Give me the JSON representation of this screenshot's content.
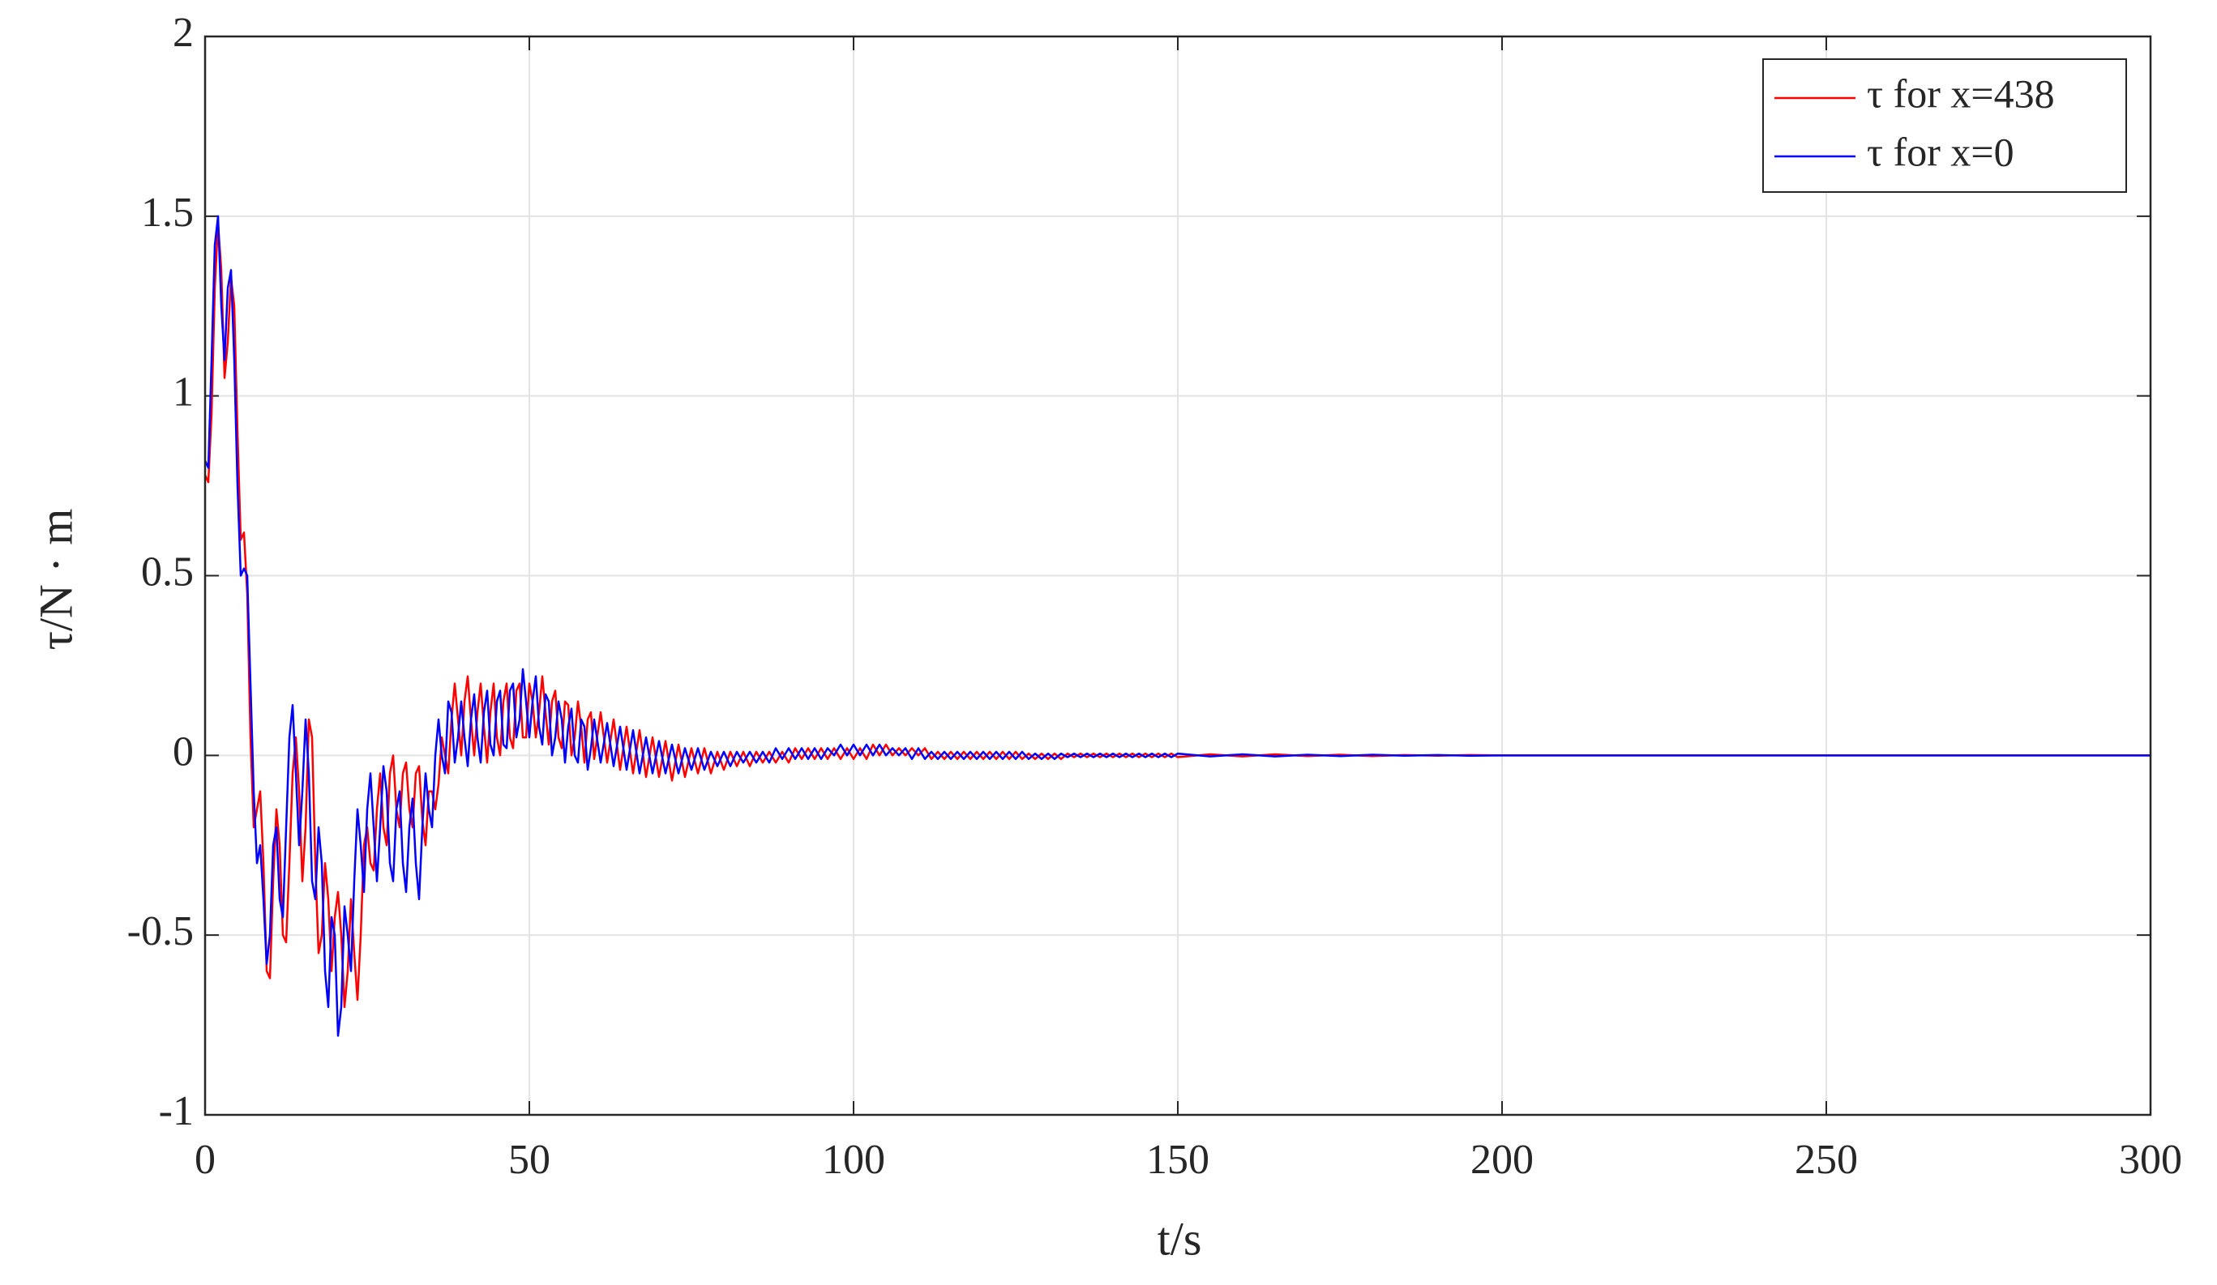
{
  "chart_data": {
    "type": "line",
    "xlabel": "t/s",
    "ylabel": "τ/N · m",
    "xlim": [
      0,
      300
    ],
    "xticks": [
      0,
      50,
      100,
      150,
      200,
      250,
      300
    ],
    "ylim": [
      -1,
      2
    ],
    "yticks": [
      -1,
      -0.5,
      0,
      0.5,
      1,
      1.5,
      2
    ],
    "grid": true,
    "legend": "upper right",
    "x": [
      0,
      0.5,
      1,
      1.5,
      2,
      2.5,
      3,
      3.5,
      4,
      4.5,
      5,
      5.5,
      6,
      6.5,
      7,
      7.5,
      8,
      8.5,
      9,
      9.5,
      10,
      10.5,
      11,
      11.5,
      12,
      12.5,
      13,
      13.5,
      14,
      14.5,
      15,
      15.5,
      16,
      16.5,
      17,
      17.5,
      18,
      18.5,
      19,
      19.5,
      20,
      20.5,
      21,
      21.5,
      22,
      22.5,
      23,
      23.5,
      24,
      24.5,
      25,
      25.5,
      26,
      26.5,
      27,
      27.5,
      28,
      28.5,
      29,
      29.5,
      30,
      30.5,
      31,
      31.5,
      32,
      32.5,
      33,
      33.5,
      34,
      34.5,
      35,
      35.5,
      36,
      36.5,
      37,
      37.5,
      38,
      38.5,
      39,
      39.5,
      40,
      40.5,
      41,
      41.5,
      42,
      42.5,
      43,
      43.5,
      44,
      44.5,
      45,
      45.5,
      46,
      46.5,
      47,
      47.5,
      48,
      48.5,
      49,
      49.5,
      50,
      50.5,
      51,
      51.5,
      52,
      52.5,
      53,
      53.5,
      54,
      54.5,
      55,
      55.5,
      56,
      56.5,
      57,
      57.5,
      58,
      58.5,
      59,
      59.5,
      60,
      61,
      62,
      63,
      64,
      65,
      66,
      67,
      68,
      69,
      70,
      71,
      72,
      73,
      74,
      75,
      76,
      77,
      78,
      79,
      80,
      81,
      82,
      83,
      84,
      85,
      86,
      87,
      88,
      89,
      90,
      91,
      92,
      93,
      94,
      95,
      96,
      97,
      98,
      99,
      100,
      101,
      102,
      103,
      104,
      105,
      106,
      107,
      108,
      109,
      110,
      111,
      112,
      113,
      114,
      115,
      116,
      117,
      118,
      119,
      120,
      121,
      122,
      123,
      124,
      125,
      126,
      127,
      128,
      129,
      130,
      131,
      132,
      133,
      134,
      135,
      136,
      137,
      138,
      139,
      140,
      141,
      142,
      143,
      144,
      145,
      146,
      147,
      148,
      149,
      150,
      155,
      160,
      165,
      170,
      175,
      180,
      185,
      190,
      195,
      200,
      205,
      210,
      215,
      220,
      225,
      230,
      235,
      240,
      245,
      250,
      255,
      260,
      265,
      270,
      275,
      280,
      285,
      290,
      295,
      300
    ],
    "series": [
      {
        "name": "τ for x=438",
        "color": "#ff0000",
        "values": [
          0.78,
          0.76,
          0.95,
          1.3,
          1.48,
          1.35,
          1.05,
          1.15,
          1.33,
          1.25,
          0.9,
          0.6,
          0.62,
          0.45,
          0.05,
          -0.2,
          -0.15,
          -0.1,
          -0.3,
          -0.6,
          -0.62,
          -0.35,
          -0.15,
          -0.25,
          -0.5,
          -0.52,
          -0.3,
          -0.05,
          0.05,
          -0.1,
          -0.35,
          -0.2,
          0.1,
          0.05,
          -0.3,
          -0.55,
          -0.5,
          -0.3,
          -0.4,
          -0.6,
          -0.45,
          -0.38,
          -0.5,
          -0.7,
          -0.6,
          -0.4,
          -0.55,
          -0.68,
          -0.5,
          -0.25,
          -0.2,
          -0.3,
          -0.32,
          -0.15,
          -0.05,
          -0.2,
          -0.25,
          -0.05,
          0,
          -0.15,
          -0.2,
          -0.05,
          -0.02,
          -0.15,
          -0.2,
          -0.05,
          -0.03,
          -0.18,
          -0.25,
          -0.1,
          -0.1,
          -0.15,
          -0.08,
          0.05,
          0,
          -0.05,
          0.1,
          0.2,
          0.1,
          0,
          0.15,
          0.22,
          0.1,
          0,
          0.12,
          0.2,
          0.08,
          -0.02,
          0.12,
          0.2,
          0.05,
          0,
          0.15,
          0.2,
          0.05,
          0.02,
          0.18,
          0.2,
          0.05,
          0.05,
          0.2,
          0.15,
          0.05,
          0.12,
          0.22,
          0.12,
          0.03,
          0.15,
          0.18,
          0.05,
          0.02,
          0.15,
          0.14,
          0,
          0.05,
          0.15,
          0.08,
          -0.02,
          0.1,
          0.12,
          -0.01,
          0.12,
          -0.02,
          0.1,
          -0.04,
          0.08,
          -0.05,
          0.07,
          -0.06,
          0.05,
          -0.06,
          0.04,
          -0.07,
          0.03,
          -0.06,
          0.02,
          -0.05,
          0.02,
          -0.05,
          0.01,
          -0.04,
          0.01,
          -0.03,
          0.01,
          -0.03,
          0.01,
          -0.02,
          0.01,
          -0.02,
          0.01,
          -0.02,
          0.02,
          -0.01,
          0.02,
          -0.01,
          0.02,
          -0.01,
          0.02,
          -0.01,
          0.02,
          -0.01,
          0.02,
          -0.01,
          0.03,
          0,
          0.03,
          0,
          0.02,
          0,
          0.02,
          0,
          0.02,
          -0.01,
          0.01,
          -0.01,
          0.01,
          -0.01,
          0.01,
          -0.01,
          0.01,
          -0.01,
          0.01,
          -0.01,
          0.01,
          -0.01,
          0.01,
          -0.01,
          0.005,
          -0.01,
          0.005,
          -0.01,
          0.005,
          -0.01,
          0.005,
          -0.005,
          0.005,
          -0.005,
          0.005,
          -0.005,
          0.005,
          -0.005,
          0.005,
          -0.005,
          0.005,
          -0.005,
          0.005,
          -0.005,
          0.005,
          -0.005,
          0.005,
          -0.005,
          0.003,
          -0.003,
          0.003,
          -0.002,
          0.002,
          -0.002,
          0.001,
          -0.001,
          0.001,
          0,
          0,
          0,
          0,
          0,
          0,
          0,
          0,
          0,
          0,
          0,
          0,
          0,
          0,
          0,
          0,
          0,
          0,
          0,
          0,
          0
        ]
      },
      {
        "name": "τ for x=0",
        "color": "#0000ff",
        "values": [
          0.82,
          0.8,
          1.1,
          1.42,
          1.5,
          1.25,
          1.1,
          1.3,
          1.35,
          1.1,
          0.75,
          0.5,
          0.52,
          0.5,
          0.2,
          -0.1,
          -0.3,
          -0.25,
          -0.4,
          -0.58,
          -0.5,
          -0.25,
          -0.2,
          -0.4,
          -0.45,
          -0.2,
          0.05,
          0.14,
          -0.05,
          -0.25,
          -0.1,
          0.1,
          -0.05,
          -0.35,
          -0.4,
          -0.2,
          -0.3,
          -0.6,
          -0.7,
          -0.45,
          -0.5,
          -0.78,
          -0.7,
          -0.42,
          -0.5,
          -0.6,
          -0.35,
          -0.15,
          -0.25,
          -0.38,
          -0.15,
          -0.05,
          -0.2,
          -0.35,
          -0.2,
          -0.03,
          -0.1,
          -0.3,
          -0.35,
          -0.15,
          -0.1,
          -0.3,
          -0.38,
          -0.2,
          -0.12,
          -0.3,
          -0.4,
          -0.2,
          -0.05,
          -0.15,
          -0.2,
          0,
          0.1,
          0,
          -0.05,
          0.15,
          0.12,
          -0.02,
          0.05,
          0.15,
          0.05,
          -0.03,
          0.1,
          0.17,
          0.05,
          -0.02,
          0.12,
          0.18,
          0.03,
          0,
          0.15,
          0.18,
          0.03,
          0.02,
          0.18,
          0.2,
          0.05,
          0.1,
          0.24,
          0.15,
          0.05,
          0.15,
          0.22,
          0.08,
          0.03,
          0.17,
          0.15,
          0,
          0.05,
          0.15,
          0.1,
          -0.02,
          0.08,
          0.13,
          0,
          -0.02,
          0.1,
          0.08,
          -0.04,
          0.02,
          0.1,
          -0.02,
          0.09,
          -0.03,
          0.08,
          -0.04,
          0.07,
          -0.05,
          0.05,
          -0.05,
          0.04,
          -0.05,
          0.03,
          -0.05,
          0.02,
          -0.04,
          0.02,
          -0.04,
          0.01,
          -0.03,
          0.01,
          -0.03,
          0.01,
          -0.02,
          0.01,
          -0.02,
          0.01,
          -0.02,
          0.02,
          -0.01,
          0.02,
          -0.01,
          0.02,
          -0.01,
          0.02,
          -0.01,
          0.02,
          0,
          0.03,
          0,
          0.03,
          0,
          0.03,
          0,
          0.03,
          0,
          0.02,
          0,
          0.02,
          -0.01,
          0.02,
          -0.01,
          0.01,
          -0.01,
          0.01,
          -0.01,
          0.01,
          -0.01,
          0.01,
          -0.01,
          0.01,
          -0.01,
          0.01,
          -0.01,
          0.01,
          -0.01,
          0.01,
          -0.01,
          0.005,
          -0.01,
          0.005,
          -0.01,
          0.005,
          -0.005,
          0.005,
          -0.005,
          0.005,
          -0.005,
          0.005,
          -0.005,
          0.005,
          -0.005,
          0.005,
          -0.005,
          0.005,
          -0.005,
          0.005,
          -0.005,
          0.005,
          -0.005,
          0.005,
          -0.003,
          0.003,
          -0.003,
          0.002,
          -0.002,
          0.002,
          -0.001,
          0.001,
          -0.001,
          0,
          0,
          0,
          0,
          0,
          0,
          0,
          0,
          0,
          0,
          0,
          0,
          0,
          0,
          0,
          0,
          0,
          0,
          0,
          0,
          0
        ]
      }
    ]
  }
}
